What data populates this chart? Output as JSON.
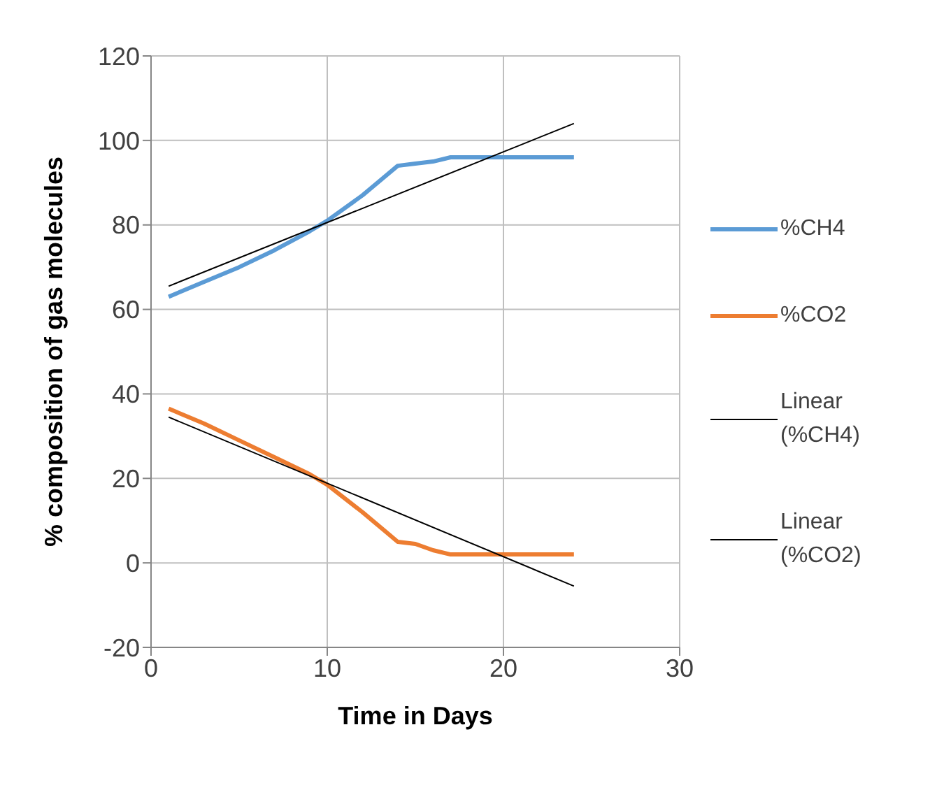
{
  "chart_data": {
    "type": "line",
    "xlabel": "Time in Days",
    "ylabel": "% composition of gas molecules",
    "xlim": [
      0,
      30
    ],
    "xticks": [
      0,
      10,
      20,
      30
    ],
    "ylim": [
      -20,
      120
    ],
    "yticks": [
      -20,
      0,
      20,
      40,
      60,
      80,
      100,
      120
    ],
    "grid": true,
    "legend": "right",
    "marker": "none",
    "line_style": "solid",
    "series": [
      {
        "name": "%CH4",
        "color": "#5b9bd5",
        "x": [
          1,
          3,
          5,
          7,
          9,
          10,
          12,
          14,
          15,
          16,
          17,
          24
        ],
        "values": [
          63,
          66.5,
          70,
          74,
          78.5,
          81,
          87,
          94,
          94.5,
          95,
          96,
          96
        ]
      },
      {
        "name": "%CO2",
        "color": "#ed7d31",
        "x": [
          1,
          3,
          5,
          7,
          9,
          10,
          12,
          14,
          15,
          16,
          17,
          24
        ],
        "values": [
          36.5,
          33,
          29,
          25,
          21,
          18.5,
          12,
          5,
          4.5,
          3,
          2,
          2
        ]
      },
      {
        "name": "Linear (%CH4)",
        "color": "#000000",
        "x": [
          1,
          24
        ],
        "values": [
          65.5,
          104
        ]
      },
      {
        "name": "Linear (%CO2)",
        "color": "#000000",
        "x": [
          1,
          24
        ],
        "values": [
          34.5,
          -5.5
        ]
      }
    ]
  }
}
